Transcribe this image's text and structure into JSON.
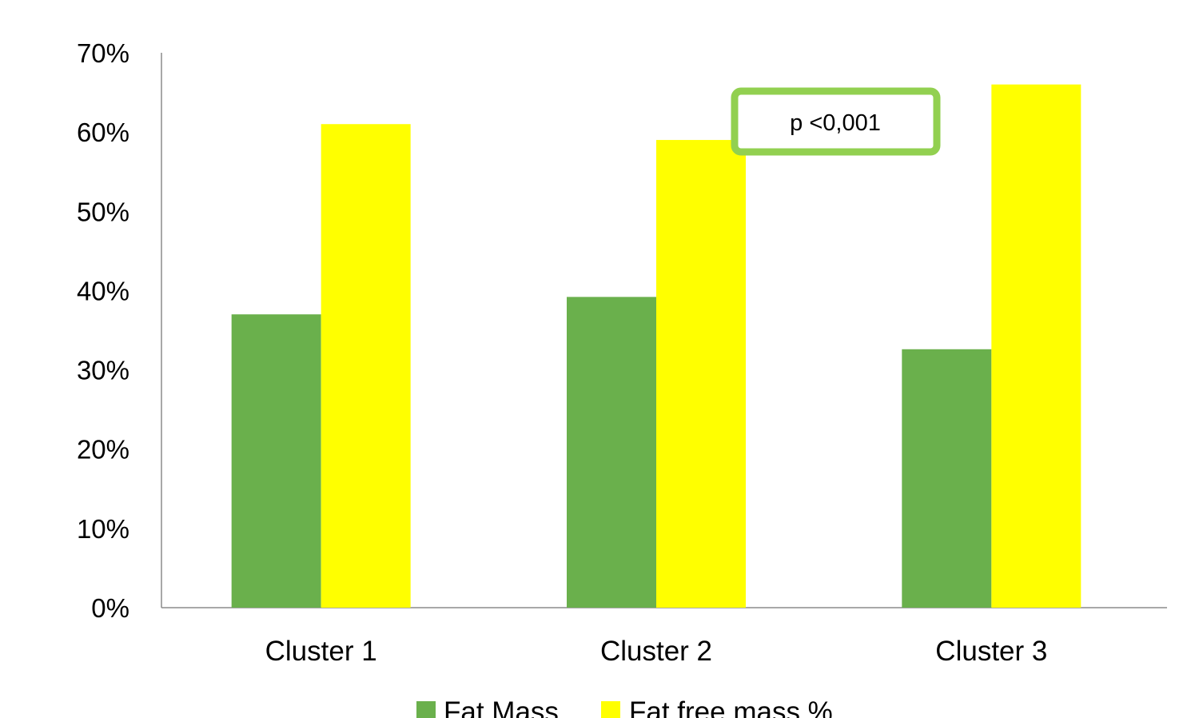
{
  "chart_data": {
    "type": "bar",
    "categories": [
      "Cluster 1",
      "Cluster 2",
      "Cluster 3"
    ],
    "series": [
      {
        "name": "Fat Mass",
        "values": [
          37,
          39.2,
          32.6
        ],
        "color": "#6ab04c"
      },
      {
        "name": "Fat free mass %",
        "values": [
          61,
          59,
          66
        ],
        "color": "#ffff00"
      }
    ],
    "ylim": [
      0,
      70
    ],
    "yticks": [
      0,
      10,
      20,
      30,
      40,
      50,
      60,
      70
    ],
    "ytick_labels": [
      "0%",
      "10%",
      "20%",
      "30%",
      "40%",
      "50%",
      "60%",
      "70%"
    ],
    "grid": false,
    "legend": "bottom",
    "annotation": {
      "text": "p <0,001",
      "border_color": "#92d050"
    }
  }
}
